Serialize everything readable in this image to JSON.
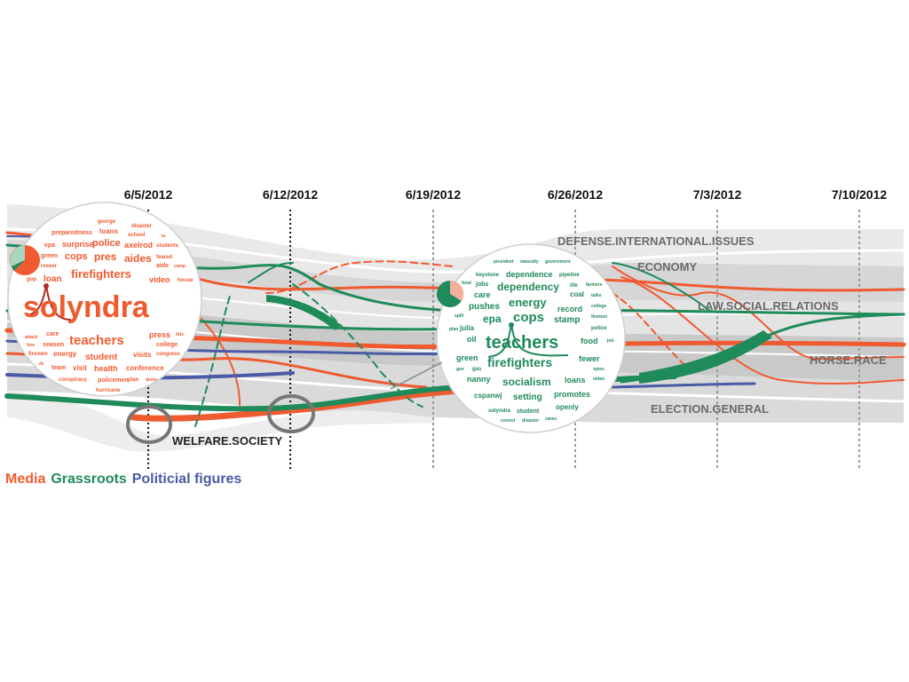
{
  "dates": [
    "6/5/2012",
    "6/12/2012",
    "6/19/2012",
    "6/26/2012",
    "7/3/2012",
    "7/10/2012"
  ],
  "topics": {
    "defense": "DEFENSE.INTERNATIONAL.ISSUES",
    "economy": "ECONOMY",
    "law": "LAW.SOCIAL.RELATIONS",
    "horse": "HORSE.RACE",
    "election": "ELECTION.GENERAL",
    "welfare": "WELFARE.SOCIETY"
  },
  "legend": [
    {
      "label": "Media",
      "color": "#f05a30"
    },
    {
      "label": "Grassroots",
      "color": "#1f8a5a"
    },
    {
      "label": "Politicial figures",
      "color": "#4a5aa6"
    }
  ],
  "colors": {
    "media": "#f05a30",
    "grassroots": "#1f8a5a",
    "political": "#4a5aa6",
    "band_light": "#e6e6e6",
    "band_mid": "#d4d4d4",
    "band_dark": "#bdbdbd"
  },
  "cloud_media": {
    "words": [
      "george",
      "disaster",
      "preparedness",
      "loans",
      "school",
      "la",
      "epa",
      "surprise",
      "police",
      "axelrod",
      "students",
      "green",
      "cops",
      "pres",
      "aides",
      "feared",
      "resser",
      "aide",
      "camp",
      "firefighters",
      "gop",
      "loan",
      "video",
      "house",
      "solyndra",
      "care",
      "press",
      "hits",
      "attack",
      "teachers",
      "hire",
      "season",
      "college",
      "firemen",
      "energy",
      "student",
      "visits",
      "congress",
      "dc",
      "team",
      "visit",
      "health",
      "conference",
      "conspiracy",
      "policemen",
      "plan",
      "dems",
      "hurricane"
    ]
  },
  "cloud_grassroots": {
    "words": [
      "president",
      "naturally",
      "government",
      "keystone",
      "dependence",
      "pipeline",
      "fund",
      "jobs",
      "life",
      "farmers",
      "dependency",
      "care",
      "coal",
      "talks",
      "pushes",
      "energy",
      "record",
      "college",
      "spill",
      "cops",
      "stamp",
      "firemen",
      "epa",
      "julia",
      "police",
      "plan",
      "oil",
      "teachers",
      "food",
      "job",
      "green",
      "fewer",
      "gov",
      "gas",
      "firefighters",
      "spies",
      "nanny",
      "loans",
      "video",
      "socialism",
      "cspanwj",
      "setting",
      "promotes",
      "solyndra",
      "openly",
      "student",
      "convol",
      "disaster",
      "cares"
    ]
  }
}
